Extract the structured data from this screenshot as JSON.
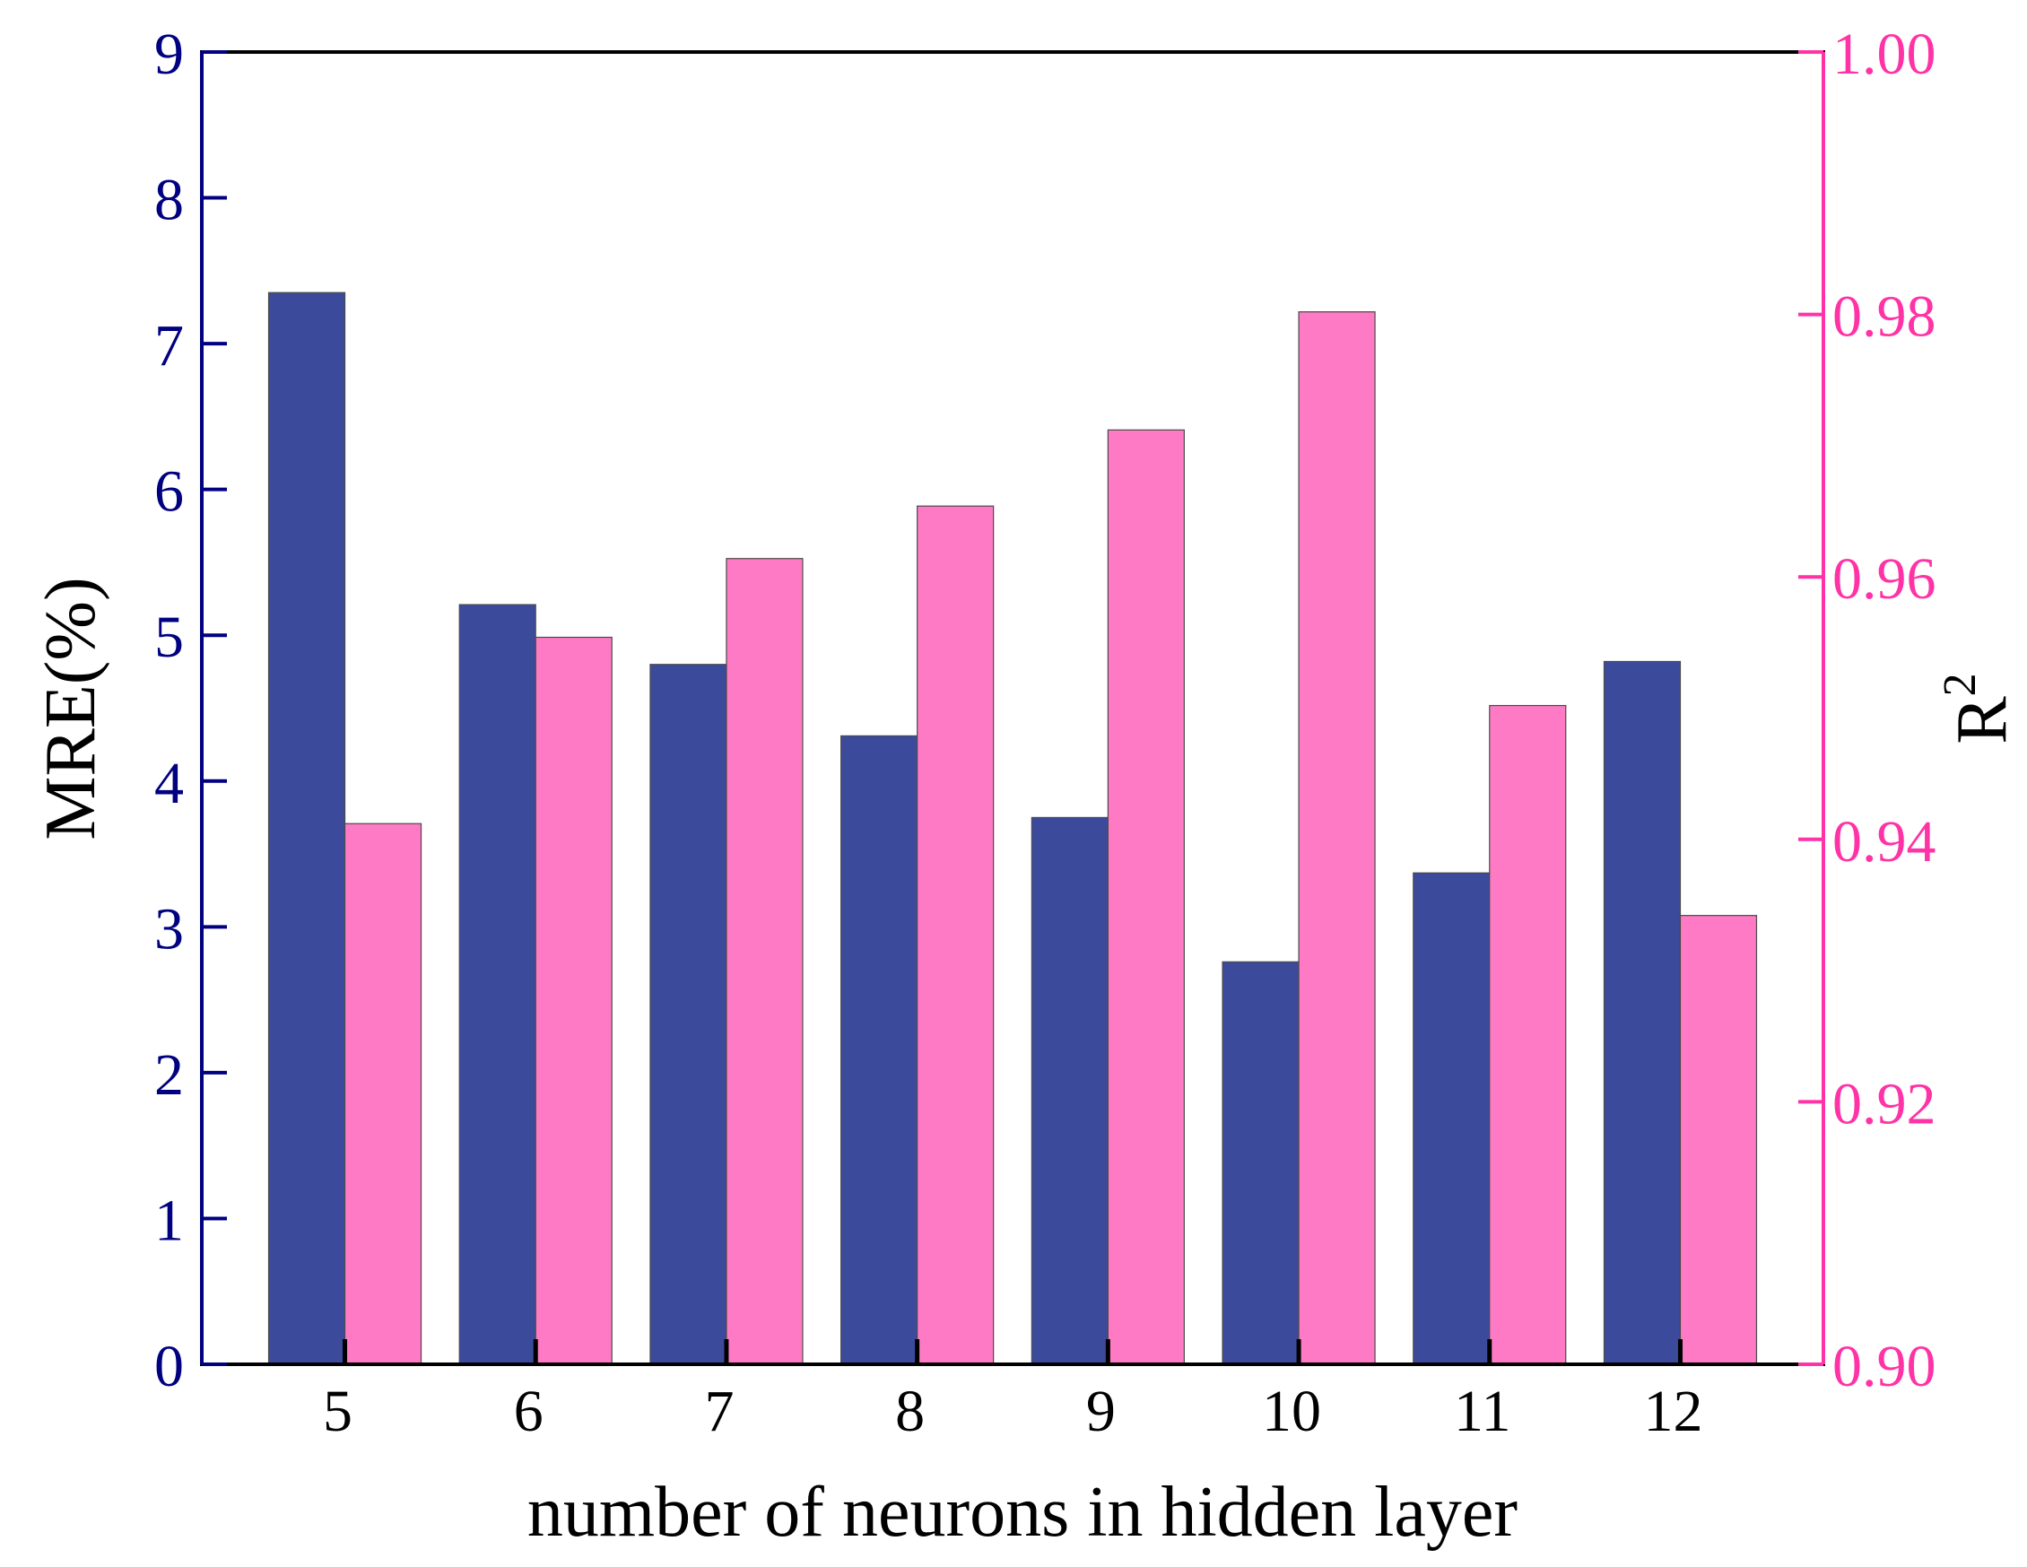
{
  "chart_data": {
    "type": "bar",
    "xlabel": "number of neurons in hidden layer",
    "categories": [
      "5",
      "6",
      "7",
      "8",
      "9",
      "10",
      "11",
      "12"
    ],
    "left_axis": {
      "label": "MRE(%)",
      "ylim": [
        0,
        9
      ],
      "ticks": [
        "0",
        "1",
        "2",
        "3",
        "4",
        "5",
        "6",
        "7",
        "8",
        "9"
      ],
      "color": "#000080"
    },
    "right_axis": {
      "label_base": "R",
      "label_sup": "2",
      "ylim": [
        0.9,
        1.0
      ],
      "ticks": [
        "0.90",
        "0.92",
        "0.94",
        "0.96",
        "0.98",
        "1.00"
      ],
      "color": "#ff33a6"
    },
    "series": [
      {
        "axis": "left",
        "color": "#3c4a9c",
        "values": [
          7.35,
          5.21,
          4.8,
          4.31,
          3.75,
          2.76,
          3.37,
          4.82
        ]
      },
      {
        "axis": "right",
        "color": "#ff7ac4",
        "values": [
          0.9412,
          0.9554,
          0.9614,
          0.9654,
          0.9712,
          0.9802,
          0.9502,
          0.9342
        ]
      }
    ],
    "grid": false,
    "legend": "none"
  }
}
